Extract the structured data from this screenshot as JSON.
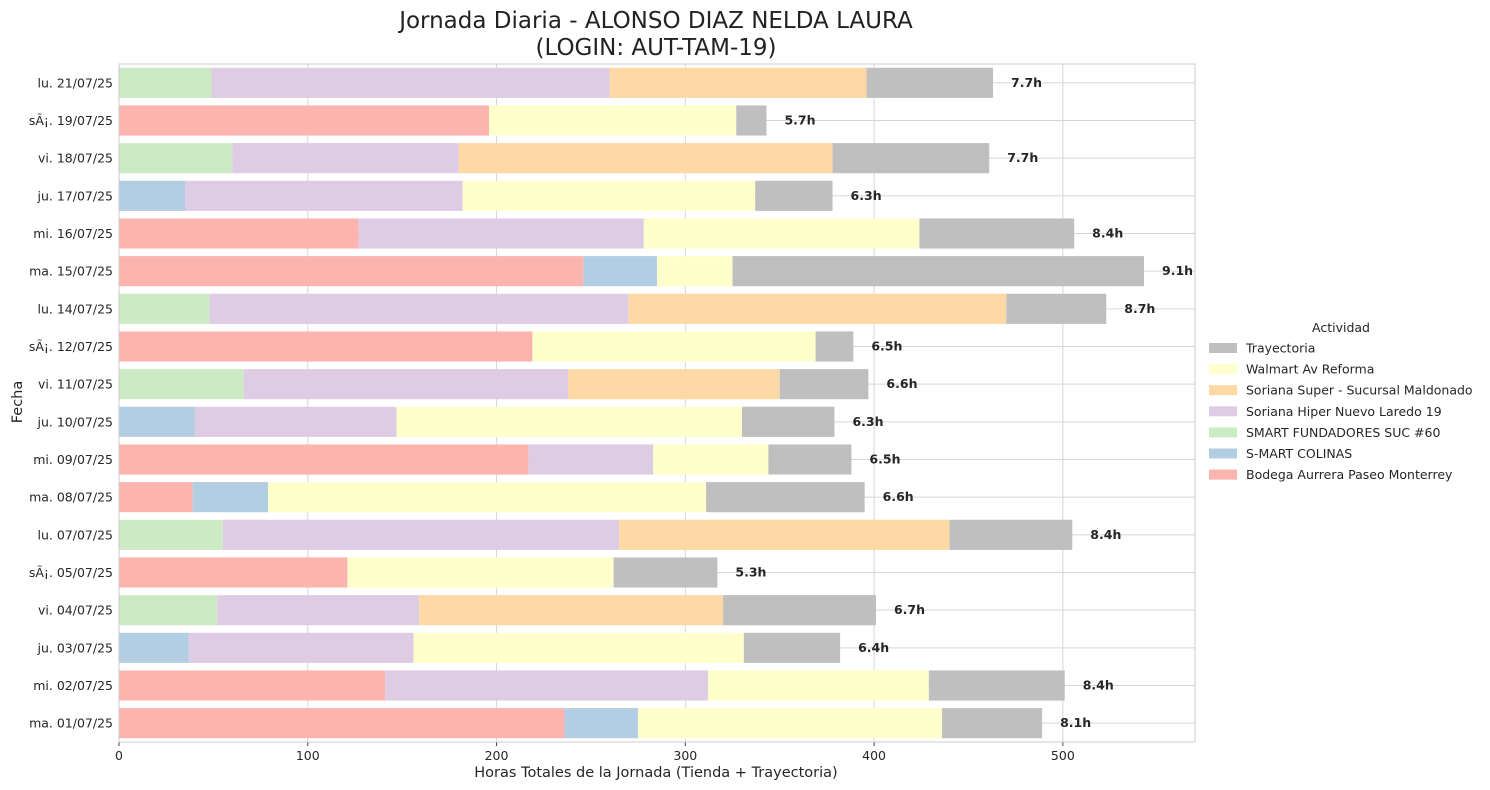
{
  "chart_data": {
    "type": "bar",
    "orientation": "horizontal",
    "stacked": true,
    "title": "Jornada Diaria - ALONSO DIAZ NELDA LAURA",
    "subtitle": "(LOGIN: AUT-TAM-19)",
    "xlabel": "Horas Totales de la Jornada (Tienda + Trayectoria)",
    "ylabel": "Fecha",
    "xlim": [
      0,
      570
    ],
    "xticks": [
      0,
      100,
      200,
      300,
      400,
      500
    ],
    "grid": true,
    "legend_title": "Actividad",
    "legend_placement": "center-right",
    "categories": [
      "lu. 21/07/25",
      "sÃ¡. 19/07/25",
      "vi. 18/07/25",
      "ju. 17/07/25",
      "mi. 16/07/25",
      "ma. 15/07/25",
      "lu. 14/07/25",
      "sÃ¡. 12/07/25",
      "vi. 11/07/25",
      "ju. 10/07/25",
      "mi. 09/07/25",
      "ma. 08/07/25",
      "lu. 07/07/25",
      "sÃ¡. 05/07/25",
      "vi. 04/07/25",
      "ju. 03/07/25",
      "mi. 02/07/25",
      "ma. 01/07/25"
    ],
    "totals_labels": [
      "7.7h",
      "5.7h",
      "7.7h",
      "6.3h",
      "8.4h",
      "9.1h",
      "8.7h",
      "6.5h",
      "6.6h",
      "6.3h",
      "6.5h",
      "6.6h",
      "8.4h",
      "5.3h",
      "6.7h",
      "6.4h",
      "8.4h",
      "8.1h"
    ],
    "series": [
      {
        "name": "Bodega Aurrera Paseo Monterrey",
        "color": "#fbb4ae",
        "values": [
          0,
          196,
          0,
          0,
          127,
          246,
          0,
          219,
          0,
          0,
          217,
          39,
          0,
          121,
          0,
          0,
          141,
          236
        ]
      },
      {
        "name": "S-MART COLINAS",
        "color": "#b3cde3",
        "values": [
          0,
          0,
          0,
          35,
          0,
          39,
          0,
          0,
          0,
          40,
          0,
          40,
          0,
          0,
          0,
          37,
          0,
          39
        ]
      },
      {
        "name": "SMART FUNDADORES SUC #60",
        "color": "#ccebc5",
        "values": [
          49,
          0,
          60,
          0,
          0,
          0,
          48,
          0,
          66,
          0,
          0,
          0,
          55,
          0,
          52,
          0,
          0,
          0
        ]
      },
      {
        "name": "Soriana Hiper Nuevo Laredo 19",
        "color": "#decbe4",
        "values": [
          211,
          0,
          120,
          147,
          151,
          0,
          222,
          0,
          172,
          107,
          66,
          0,
          210,
          0,
          107,
          119,
          171,
          0
        ]
      },
      {
        "name": "Soriana Super - Sucursal Maldonado",
        "color": "#fed9a6",
        "values": [
          136,
          0,
          198,
          0,
          0,
          0,
          200,
          0,
          112,
          0,
          0,
          0,
          175,
          0,
          161,
          0,
          0,
          0
        ]
      },
      {
        "name": "Walmart Av Reforma",
        "color": "#ffffcc",
        "values": [
          0,
          131,
          0,
          155,
          146,
          40,
          0,
          150,
          0,
          183,
          61,
          232,
          0,
          141,
          0,
          175,
          117,
          161
        ]
      },
      {
        "name": "Trayectoria",
        "color": "#bfbfbf",
        "values": [
          67,
          16,
          83,
          41,
          82,
          218,
          53,
          20,
          47,
          49,
          44,
          84,
          65,
          55,
          81,
          51,
          72,
          53
        ]
      }
    ],
    "legend_order": [
      "Trayectoria",
      "Walmart Av Reforma",
      "Soriana Super - Sucursal Maldonado",
      "Soriana Hiper Nuevo Laredo 19",
      "SMART FUNDADORES SUC #60",
      "S-MART COLINAS",
      "Bodega Aurrera Paseo Monterrey"
    ]
  },
  "colors": {
    "grid": "#d6d6d6",
    "frame": "#cccccc",
    "text": "#262626"
  }
}
